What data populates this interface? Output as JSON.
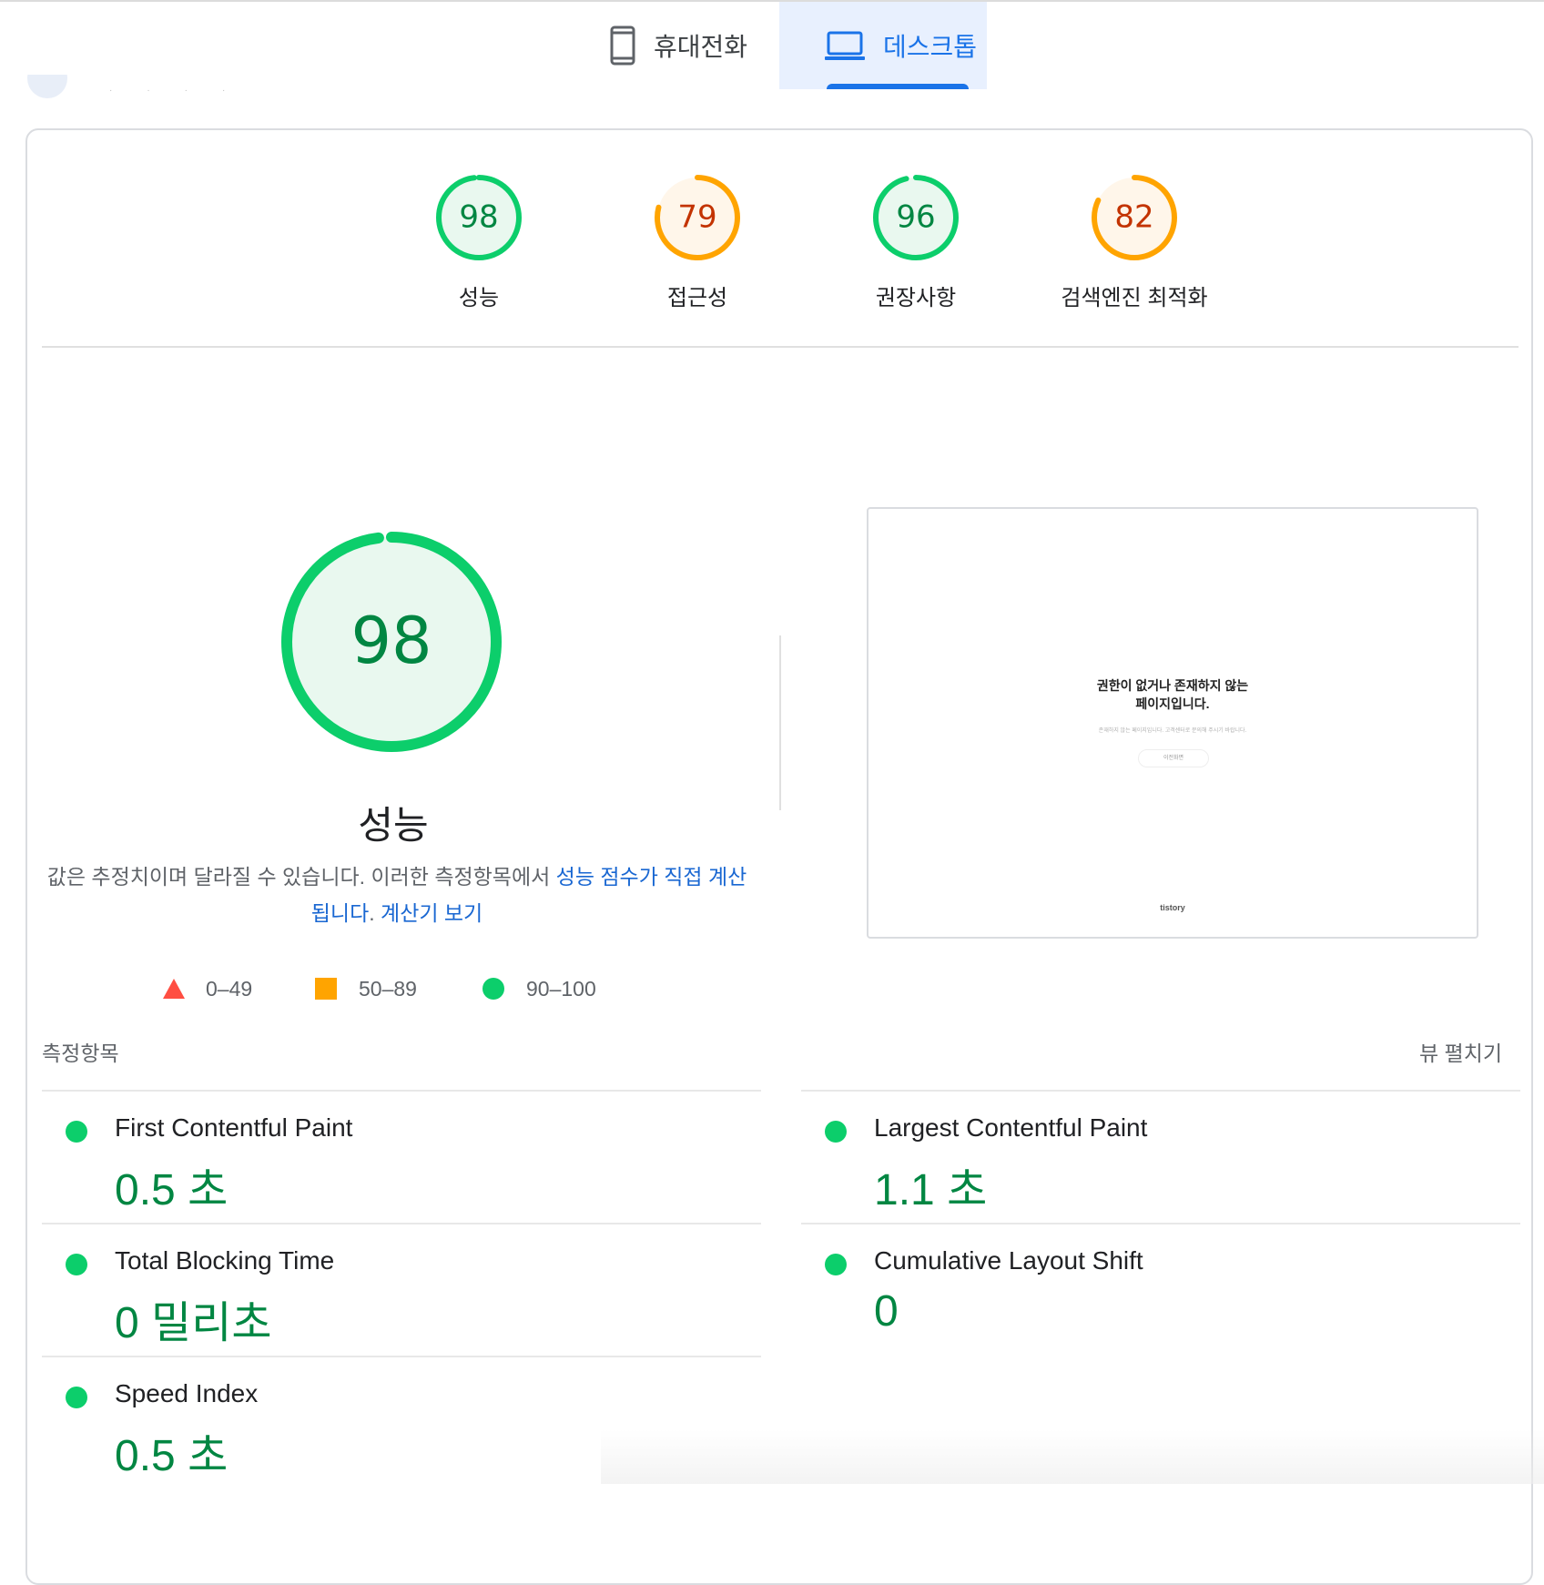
{
  "tabs": [
    {
      "label": "휴대전화",
      "icon": "phone-icon",
      "active": false
    },
    {
      "label": "데스크톱",
      "icon": "laptop-icon",
      "active": true
    }
  ],
  "colors": {
    "pass": "#0cce6b",
    "pass_text": "#018642",
    "average": "#ffa400",
    "average_text": "#c33300",
    "fail": "#ff4e42",
    "link": "#1967d2",
    "active_tab": "#1a73e8"
  },
  "categories": [
    {
      "score": 98,
      "label": "성능",
      "rating": "pass"
    },
    {
      "score": 79,
      "label": "접근성",
      "rating": "average"
    },
    {
      "score": 96,
      "label": "권장사항",
      "rating": "pass"
    },
    {
      "score": 82,
      "label": "검색엔진 최적화",
      "rating": "average"
    }
  ],
  "performance": {
    "score": 98,
    "title": "성능",
    "desc_prefix": "값은 추정치이며 달라질 수 있습니다. 이러한 측정항목에서 ",
    "desc_link": "성능 점수가 직접 계산됩니다",
    "desc_dot": ". ",
    "calc_link": "계산기 보기"
  },
  "legend": [
    {
      "range": "0–49",
      "shape": "triangle"
    },
    {
      "range": "50–89",
      "shape": "square"
    },
    {
      "range": "90–100",
      "shape": "circle"
    }
  ],
  "screenshot": {
    "line1": "권한이 없거나 존재하지 않는",
    "line2": "페이지입니다.",
    "sub": "존재하지 않는 페이지입니다. 고객센터로 문의해 주시기 바랍니다.",
    "button": "이전화면",
    "logo": "tistory"
  },
  "metrics_section": {
    "title": "측정항목",
    "expand": "뷰 펼치기"
  },
  "metrics_left": [
    {
      "name": "First Contentful Paint",
      "value": "0.5 초"
    },
    {
      "name": "Total Blocking Time",
      "value": "0 밀리초"
    },
    {
      "name": "Speed Index",
      "value": "0.5 초"
    }
  ],
  "metrics_right": [
    {
      "name": "Largest Contentful Paint",
      "value": "1.1 초"
    },
    {
      "name": "Cumulative Layout Shift",
      "value": "0"
    }
  ]
}
